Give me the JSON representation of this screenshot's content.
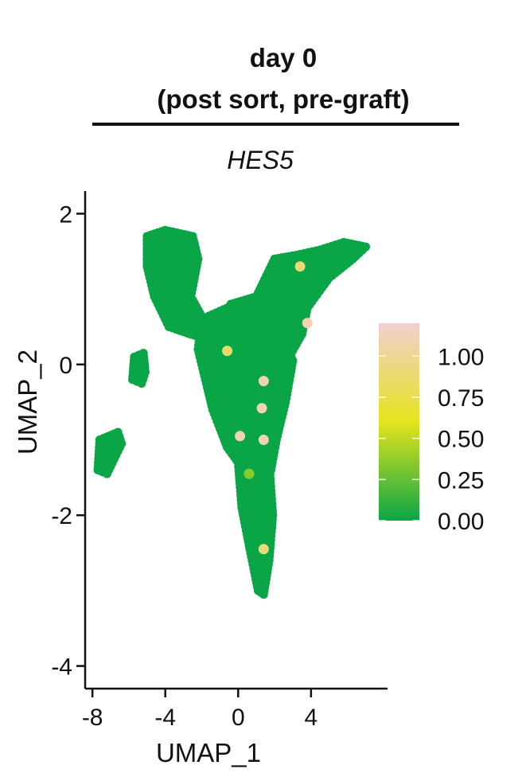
{
  "header": {
    "line1": "day 0",
    "line2": "(post sort, pre-graft)"
  },
  "chart_data": {
    "type": "scatter",
    "title": "HES5",
    "xlabel": "UMAP_1",
    "ylabel": "UMAP_2",
    "xlim": [
      -8.4,
      8.2
    ],
    "ylim": [
      -4.3,
      2.3
    ],
    "xticks": [
      -8,
      -4,
      0,
      4
    ],
    "yticks": [
      -4,
      -2,
      0,
      2
    ],
    "colors": {
      "low": "#0aa546",
      "mid": "#e4e41c",
      "high": "#f2cfcf"
    },
    "legend": {
      "position": "right",
      "labels": [
        "1.00",
        "0.75",
        "0.50",
        "0.25",
        "0.00"
      ],
      "values": [
        1.0,
        0.75,
        0.5,
        0.25,
        0.0
      ],
      "range": [
        0,
        1.2
      ]
    },
    "cluster_regions": [
      {
        "name": "left-arm",
        "polygon": [
          [
            -5.0,
            1.7
          ],
          [
            -4.0,
            1.78
          ],
          [
            -2.5,
            1.7
          ],
          [
            -2.2,
            1.4
          ],
          [
            -2.6,
            0.9
          ],
          [
            -1.8,
            0.55
          ],
          [
            -1.2,
            0.3
          ],
          [
            -2.6,
            0.4
          ],
          [
            -3.8,
            0.5
          ],
          [
            -4.6,
            0.9
          ],
          [
            -5.0,
            1.3
          ]
        ]
      },
      {
        "name": "right-arm",
        "polygon": [
          [
            -0.4,
            0.8
          ],
          [
            1.0,
            0.9
          ],
          [
            2.0,
            1.4
          ],
          [
            3.2,
            1.45
          ],
          [
            4.5,
            1.52
          ],
          [
            5.8,
            1.62
          ],
          [
            7.0,
            1.56
          ],
          [
            6.3,
            1.4
          ],
          [
            5.0,
            1.15
          ],
          [
            3.8,
            0.75
          ],
          [
            3.5,
            0.4
          ],
          [
            2.8,
            0.1
          ],
          [
            1.5,
            0.3
          ],
          [
            0.2,
            0.2
          ]
        ]
      },
      {
        "name": "central-body",
        "polygon": [
          [
            -2.0,
            0.6
          ],
          [
            -0.6,
            0.75
          ],
          [
            1.0,
            0.7
          ],
          [
            2.4,
            0.4
          ],
          [
            3.0,
            0.05
          ],
          [
            2.6,
            -0.5
          ],
          [
            2.1,
            -1.0
          ],
          [
            1.8,
            -1.4
          ],
          [
            1.2,
            -1.6
          ],
          [
            0.3,
            -1.4
          ],
          [
            -0.6,
            -1.1
          ],
          [
            -1.4,
            -0.6
          ],
          [
            -1.8,
            -0.2
          ],
          [
            -2.2,
            0.2
          ]
        ]
      },
      {
        "name": "lower-stem",
        "polygon": [
          [
            0.0,
            -1.3
          ],
          [
            1.7,
            -1.3
          ],
          [
            1.9,
            -2.0
          ],
          [
            1.7,
            -2.6
          ],
          [
            1.4,
            -3.05
          ],
          [
            1.1,
            -3.0
          ],
          [
            0.6,
            -2.4
          ],
          [
            0.2,
            -1.9
          ]
        ]
      },
      {
        "name": "small-island",
        "polygon": [
          [
            -5.7,
            0.1
          ],
          [
            -5.2,
            0.15
          ],
          [
            -5.1,
            -0.1
          ],
          [
            -5.3,
            -0.25
          ],
          [
            -5.8,
            -0.2
          ]
        ]
      },
      {
        "name": "far-island",
        "polygon": [
          [
            -7.6,
            -1.0
          ],
          [
            -6.6,
            -0.9
          ],
          [
            -6.4,
            -1.05
          ],
          [
            -6.8,
            -1.25
          ],
          [
            -7.2,
            -1.45
          ],
          [
            -7.7,
            -1.4
          ]
        ]
      }
    ],
    "highlight_points": [
      {
        "x": 3.4,
        "y": 1.3,
        "value": 0.9
      },
      {
        "x": 3.8,
        "y": 0.55,
        "value": 1.1
      },
      {
        "x": -0.6,
        "y": 0.18,
        "value": 0.85
      },
      {
        "x": 1.4,
        "y": -0.22,
        "value": 1.1
      },
      {
        "x": 1.3,
        "y": -0.58,
        "value": 1.1
      },
      {
        "x": 0.1,
        "y": -0.95,
        "value": 1.1
      },
      {
        "x": 1.4,
        "y": -1.0,
        "value": 1.1
      },
      {
        "x": 0.6,
        "y": -1.45,
        "value": 0.35
      },
      {
        "x": 1.4,
        "y": -2.45,
        "value": 0.9
      }
    ]
  }
}
